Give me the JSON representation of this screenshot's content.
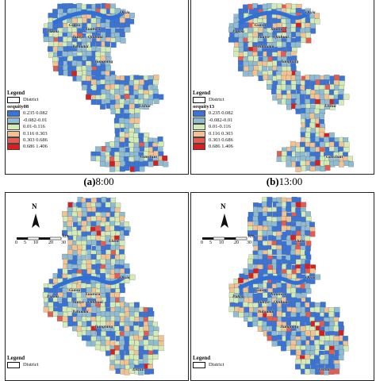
{
  "colors": {
    "class_1": "#3b73d8",
    "class_2": "#8fbcd4",
    "class_3": "#d4ebb8",
    "class_4": "#f4c193",
    "class_5": "#e45b52",
    "class_6": "#d81f1f",
    "river": "#2f6fd6"
  },
  "legend": {
    "title": "Legend",
    "district_label": "District",
    "classes": [
      {
        "label": "0.235  0.082",
        "color_key": "class_1"
      },
      {
        "label": "-0.082-0.01",
        "color_key": "class_2"
      },
      {
        "label": "0.01-0.116",
        "color_key": "class_3"
      },
      {
        "label": "0.116  0.303",
        "color_key": "class_4"
      },
      {
        "label": "0.303  0.686",
        "color_key": "class_5"
      },
      {
        "label": "0.686  1.406",
        "color_key": "class_6"
      }
    ]
  },
  "panels": [
    {
      "variable": "oequity08",
      "caption_letter": "(a)",
      "caption_time": "8:00"
    },
    {
      "variable": "oequity13",
      "caption_letter": "(b)",
      "caption_time": "13:00"
    },
    {
      "variable": "",
      "caption_letter": "",
      "caption_time": ""
    },
    {
      "variable": "",
      "caption_letter": "",
      "caption_time": ""
    }
  ],
  "places": {
    "qixia": "Qixia",
    "gulou": "Gulou",
    "xuanwu": "Xuanwu",
    "qinhuai": "Qinhuai",
    "jianye": "Jianye",
    "yuhuatai": "Yuhuatai",
    "pukou": "Pukou",
    "jiangning": "Jiangning",
    "lishui": "Lishui",
    "gaochun": "Gaochun",
    "liuhe": "Liuhe"
  },
  "north_label": "N",
  "scale": {
    "ticks": [
      "0",
      "5",
      "10",
      "20",
      "30"
    ],
    "unit": "km"
  }
}
